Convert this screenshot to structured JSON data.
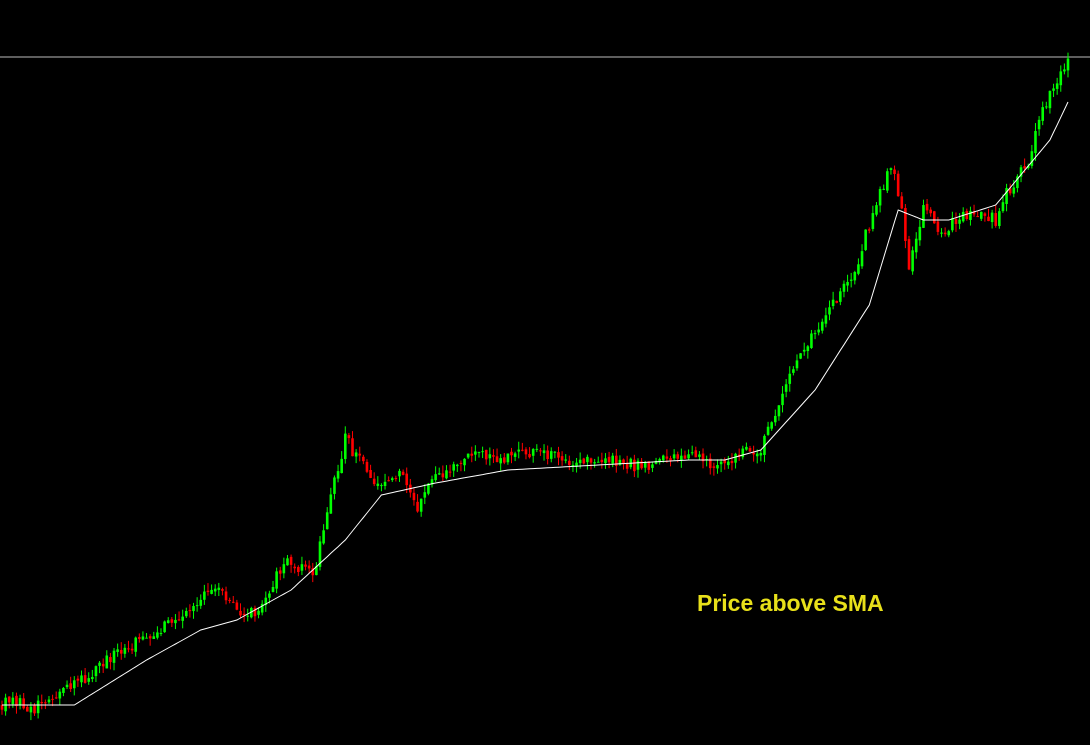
{
  "colors": {
    "background": "#000000",
    "bull_candle": "#00ff00",
    "bear_candle": "#ff0000",
    "sma_line": "#ffffff",
    "level_line": "#bbbbbb",
    "annotation_text": "#e8e01a"
  },
  "chart_data": {
    "type": "candlestick",
    "title": "",
    "xlabel": "",
    "ylabel": "",
    "grid": false,
    "legend": "none",
    "axes_visible": false,
    "ylim": [
      0,
      745
    ],
    "horizontal_line": 688,
    "annotation": "Price above SMA",
    "anchors": [
      [
        0,
        42
      ],
      [
        10,
        38
      ],
      [
        18,
        55
      ],
      [
        30,
        85
      ],
      [
        40,
        110
      ],
      [
        50,
        132
      ],
      [
        55,
        148
      ],
      [
        60,
        152
      ],
      [
        65,
        135
      ],
      [
        70,
        130
      ],
      [
        78,
        182
      ],
      [
        86,
        170
      ],
      [
        90,
        232
      ],
      [
        95,
        305
      ],
      [
        100,
        282
      ],
      [
        103,
        255
      ],
      [
        110,
        270
      ],
      [
        115,
        240
      ],
      [
        118,
        258
      ],
      [
        122,
        270
      ],
      [
        130,
        292
      ],
      [
        138,
        282
      ],
      [
        145,
        295
      ],
      [
        155,
        285
      ],
      [
        165,
        285
      ],
      [
        175,
        280
      ],
      [
        185,
        285
      ],
      [
        190,
        295
      ],
      [
        200,
        275
      ],
      [
        205,
        300
      ],
      [
        210,
        292
      ],
      [
        218,
        375
      ],
      [
        222,
        395
      ],
      [
        230,
        440
      ],
      [
        237,
        485
      ],
      [
        242,
        545
      ],
      [
        246,
        580
      ],
      [
        248,
        555
      ],
      [
        251,
        480
      ],
      [
        255,
        540
      ],
      [
        260,
        512
      ],
      [
        268,
        535
      ],
      [
        275,
        525
      ],
      [
        278,
        552
      ],
      [
        284,
        585
      ],
      [
        288,
        640
      ],
      [
        292,
        660
      ],
      [
        295,
        683
      ]
    ],
    "sma_anchors": [
      [
        0,
        40
      ],
      [
        20,
        40
      ],
      [
        40,
        85
      ],
      [
        55,
        115
      ],
      [
        65,
        125
      ],
      [
        80,
        155
      ],
      [
        95,
        205
      ],
      [
        105,
        250
      ],
      [
        120,
        262
      ],
      [
        140,
        275
      ],
      [
        165,
        280
      ],
      [
        190,
        285
      ],
      [
        200,
        285
      ],
      [
        210,
        295
      ],
      [
        225,
        355
      ],
      [
        240,
        440
      ],
      [
        248,
        535
      ],
      [
        255,
        525
      ],
      [
        262,
        525
      ],
      [
        275,
        540
      ],
      [
        290,
        605
      ],
      [
        295,
        643
      ]
    ],
    "n_candles": 296,
    "seed": 12345
  }
}
